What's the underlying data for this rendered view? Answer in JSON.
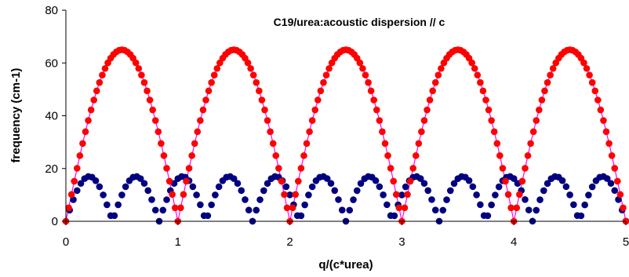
{
  "chart_data": {
    "type": "scatter",
    "title": "C19/urea:acoustic dispersion // c",
    "xlabel": "q/(c*urea)",
    "ylabel": "frequency (cm-1)",
    "xlim": [
      0,
      5
    ],
    "ylim": [
      0,
      80
    ],
    "x_ticks": [
      "0",
      "1",
      "2",
      "3",
      "4",
      "5"
    ],
    "y_ticks": [
      "0",
      "20",
      "40",
      "60",
      "80"
    ],
    "grid": false,
    "legend": "none",
    "series": [
      {
        "color": "#ff0000",
        "line_color": "#ff00ff",
        "description": "upper acoustic branch, period 1 in q, max 65 at half-integer q",
        "amplitude": 65,
        "period": 1
      },
      {
        "color": "#000080",
        "description": "lower acoustic branch, period ~0.4167 in q, max 17",
        "amplitude": 17,
        "period": 0.4167
      }
    ]
  }
}
